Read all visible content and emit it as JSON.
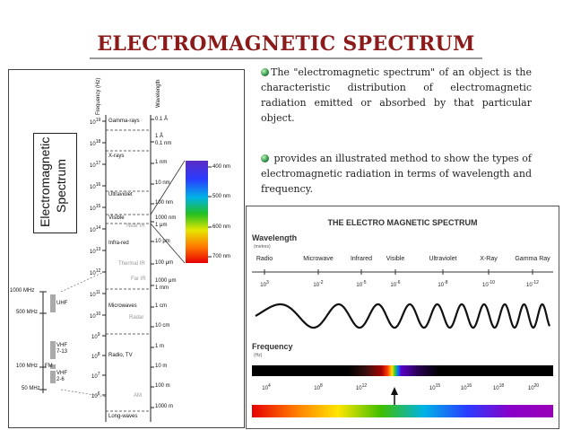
{
  "title": "ELECTROMAGNETIC  SPECTRUM",
  "paragraphs": {
    "p1": "The \"electromagnetic spectrum\" of an object is the characteristic distribution of electromagnetic radiation emitted or absorbed by that particular object.",
    "p2": " provides an illustrated method to show the types of electromagnetic radiation in terms of wavelength and frequency."
  },
  "left_chart": {
    "big_label_1": "Electromagnetic",
    "big_label_2": "Spectrum",
    "frequency_header": "Frequency (Hz)",
    "wavelength_header": "Wavelength",
    "freq_ticks": [
      "10",
      "10",
      "10",
      "10",
      "10",
      "10",
      "10",
      "10",
      "10",
      "10",
      "10",
      "10",
      "10",
      "10"
    ],
    "freq_exps": [
      "19",
      "18",
      "17",
      "16",
      "15",
      "14",
      "13",
      "12",
      "11",
      "10",
      "9",
      "8",
      "7",
      "6"
    ],
    "regions": [
      "Gamma-rays",
      "X-rays",
      "Ultraviolet",
      "Visible",
      "Infra-red",
      "Microwaves",
      "Radio, TV",
      "Long-waves"
    ],
    "sub_regions": [
      "Near IR",
      "Thermal IR",
      "Far IR",
      "Radar",
      "AM"
    ],
    "wavelengths": [
      "0.1 Å",
      "1 Å",
      "0.1 nm",
      "1 nm",
      "10 nm",
      "100 nm",
      "1000 nm",
      "1 μm",
      "10 μm",
      "100 μm",
      "1000 μm",
      "1 mm",
      "1 cm",
      "10 cm",
      "1 m",
      "10 m",
      "100 m",
      "1000 m"
    ],
    "visible_wavelengths": [
      "400 nm",
      "500 nm",
      "600 nm",
      "700 nm"
    ],
    "mhz_labels": [
      "1000 MHz",
      "500 MHz",
      "100 MHz",
      "50 MHz"
    ],
    "bands": [
      "UHF",
      "VHF",
      "7-13",
      "FM",
      "VHF",
      "2-6"
    ]
  },
  "right_chart": {
    "title": "THE ELECTRO MAGNETIC SPECTRUM",
    "wavelength_label": "Wavelength",
    "wavelength_unit": "(metres)",
    "names": [
      "Radio",
      "Microwave",
      "Infrared",
      "Visible",
      "Ultraviolet",
      "X-Ray",
      "Gamma Ray"
    ],
    "wl_bases": [
      "10",
      "10",
      "10",
      "10",
      "10",
      "10",
      "10"
    ],
    "wl_exps": [
      "3",
      "-2",
      "-5",
      "-6",
      "-8",
      "-10",
      "-12"
    ],
    "frequency_label": "Frequency",
    "frequency_unit": "(Hz)",
    "fq_bases": [
      "10",
      "10",
      "10",
      "10",
      "10",
      "10",
      "10"
    ],
    "fq_exps": [
      "4",
      "8",
      "12",
      "15",
      "16",
      "18",
      "20"
    ]
  }
}
